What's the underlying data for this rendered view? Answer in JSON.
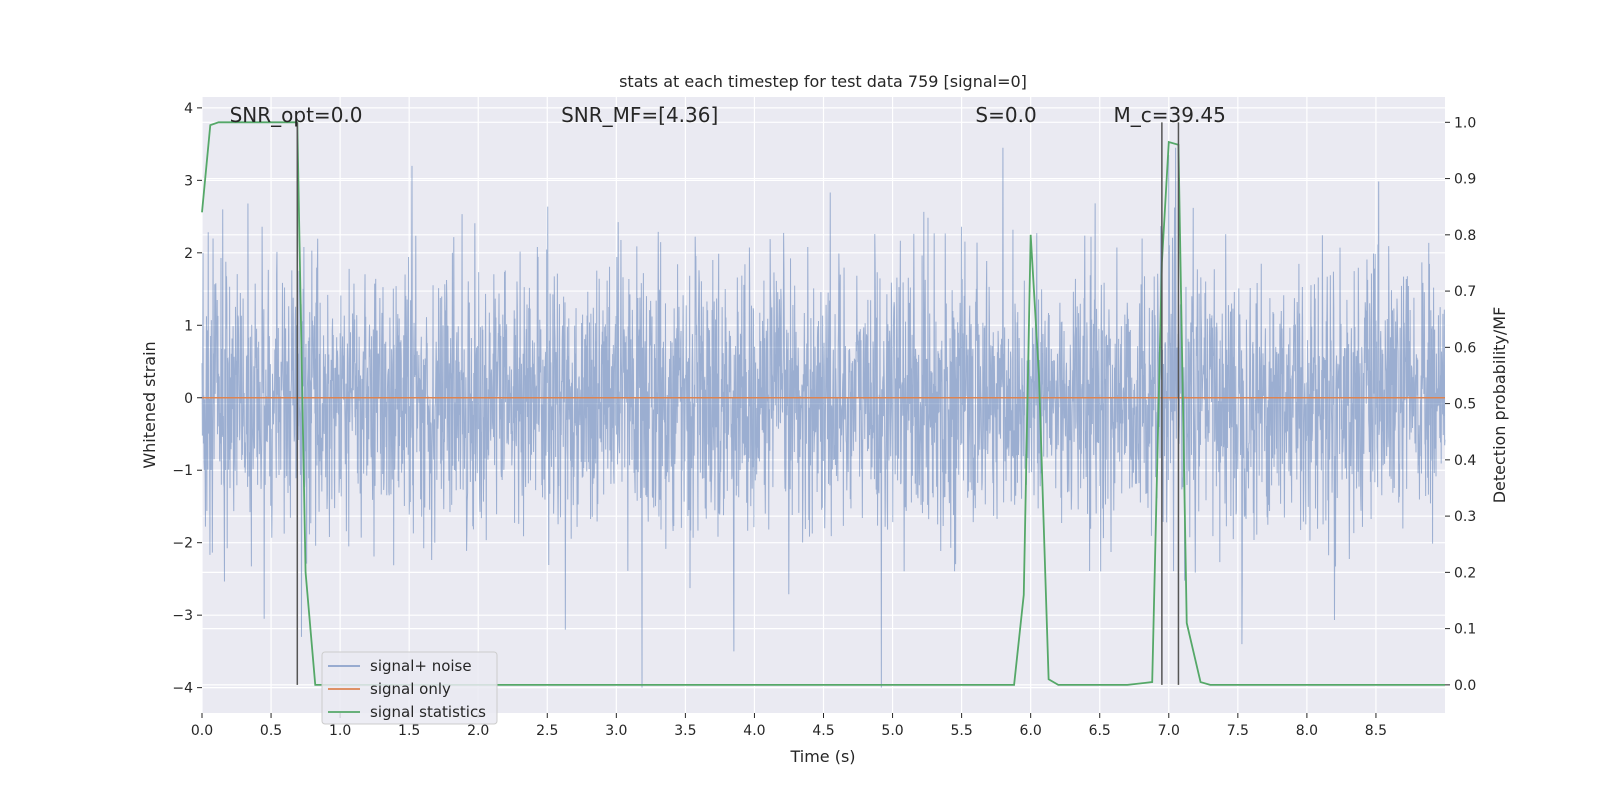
{
  "chart_data": {
    "type": "line",
    "title": "stats at each timestep for test data 759 [signal=0]",
    "xlabel": "Time (s)",
    "ylabel_left": "Whitened strain",
    "ylabel_right": "Detection probability/MF",
    "xlim": [
      0.0,
      9.0
    ],
    "ylim_left": [
      -4.35,
      4.15
    ],
    "ylim_right": [
      -0.05,
      1.045
    ],
    "x_ticks": [
      0.0,
      0.5,
      1.0,
      1.5,
      2.0,
      2.5,
      3.0,
      3.5,
      4.0,
      4.5,
      5.0,
      5.5,
      6.0,
      6.5,
      7.0,
      7.5,
      8.0,
      8.5
    ],
    "x_tick_labels": [
      "0.0",
      "0.5",
      "1.0",
      "1.5",
      "2.0",
      "2.5",
      "3.0",
      "3.5",
      "4.0",
      "4.5",
      "5.0",
      "5.5",
      "6.0",
      "6.5",
      "7.0",
      "7.5",
      "8.0",
      "8.5"
    ],
    "y_ticks_left": [
      -4,
      -3,
      -2,
      -1,
      0,
      1,
      2,
      3,
      4
    ],
    "y_tick_labels_left": [
      "−4",
      "−3",
      "−2",
      "−1",
      "0",
      "1",
      "2",
      "3",
      "4"
    ],
    "y_ticks_right": [
      0.0,
      0.1,
      0.2,
      0.3,
      0.4,
      0.5,
      0.6,
      0.7,
      0.8,
      0.9,
      1.0
    ],
    "y_tick_labels_right": [
      "0.0",
      "0.1",
      "0.2",
      "0.3",
      "0.4",
      "0.5",
      "0.6",
      "0.7",
      "0.8",
      "0.9",
      "1.0"
    ],
    "grid": true,
    "legend_position": "lower-left",
    "annotations": [
      {
        "label": "SNR_opt=0.0",
        "x": 0.2,
        "y": 3.9
      },
      {
        "label": "SNR_MF=[4.36]",
        "x": 2.6,
        "y": 3.9
      },
      {
        "label": "S=0.0",
        "x": 5.6,
        "y": 3.9
      },
      {
        "label": "M_c=39.45",
        "x": 6.6,
        "y": 3.9
      }
    ],
    "vlines": [
      0.69,
      6.95,
      7.07
    ],
    "series": [
      {
        "name": "signal+ noise",
        "axis": "left",
        "color": "#4c72b0",
        "description_stats": {
          "std": 0.95,
          "min": -4.0,
          "max": 3.45
        },
        "notable_points": [
          [
            0.15,
            2.6
          ],
          [
            0.45,
            -3.05
          ],
          [
            0.72,
            -3.3
          ],
          [
            1.52,
            3.2
          ],
          [
            2.63,
            -3.2
          ],
          [
            3.85,
            -3.5
          ],
          [
            4.92,
            -4.0
          ],
          [
            5.8,
            3.45
          ],
          [
            7.0,
            3.35
          ],
          [
            7.53,
            -3.4
          ]
        ]
      },
      {
        "name": "signal only",
        "axis": "left",
        "color": "#dd8452",
        "x": [
          0.0,
          9.0
        ],
        "y": [
          0.0,
          0.0
        ]
      },
      {
        "name": "signal statistics",
        "axis": "right",
        "color": "#55a868",
        "x": [
          0.0,
          0.06,
          0.12,
          0.2,
          0.3,
          0.4,
          0.5,
          0.6,
          0.69,
          0.75,
          0.82,
          0.9,
          1.0,
          2.0,
          3.0,
          4.0,
          5.0,
          5.6,
          5.88,
          5.95,
          6.0,
          6.06,
          6.13,
          6.2,
          6.3,
          6.5,
          6.7,
          6.88,
          6.95,
          7.0,
          7.07,
          7.13,
          7.23,
          7.3,
          7.5,
          8.0,
          9.0
        ],
        "y": [
          0.84,
          0.995,
          1.0,
          1.0,
          1.0,
          1.0,
          1.0,
          1.0,
          1.0,
          0.2,
          0.0,
          0.0,
          0.0,
          0.0,
          0.0,
          0.0,
          0.0,
          0.0,
          0.0,
          0.16,
          0.8,
          0.55,
          0.01,
          0.0,
          0.0,
          0.0,
          0.0,
          0.005,
          0.75,
          0.965,
          0.96,
          0.11,
          0.005,
          0.0,
          0.0,
          0.0,
          0.0
        ]
      }
    ]
  }
}
